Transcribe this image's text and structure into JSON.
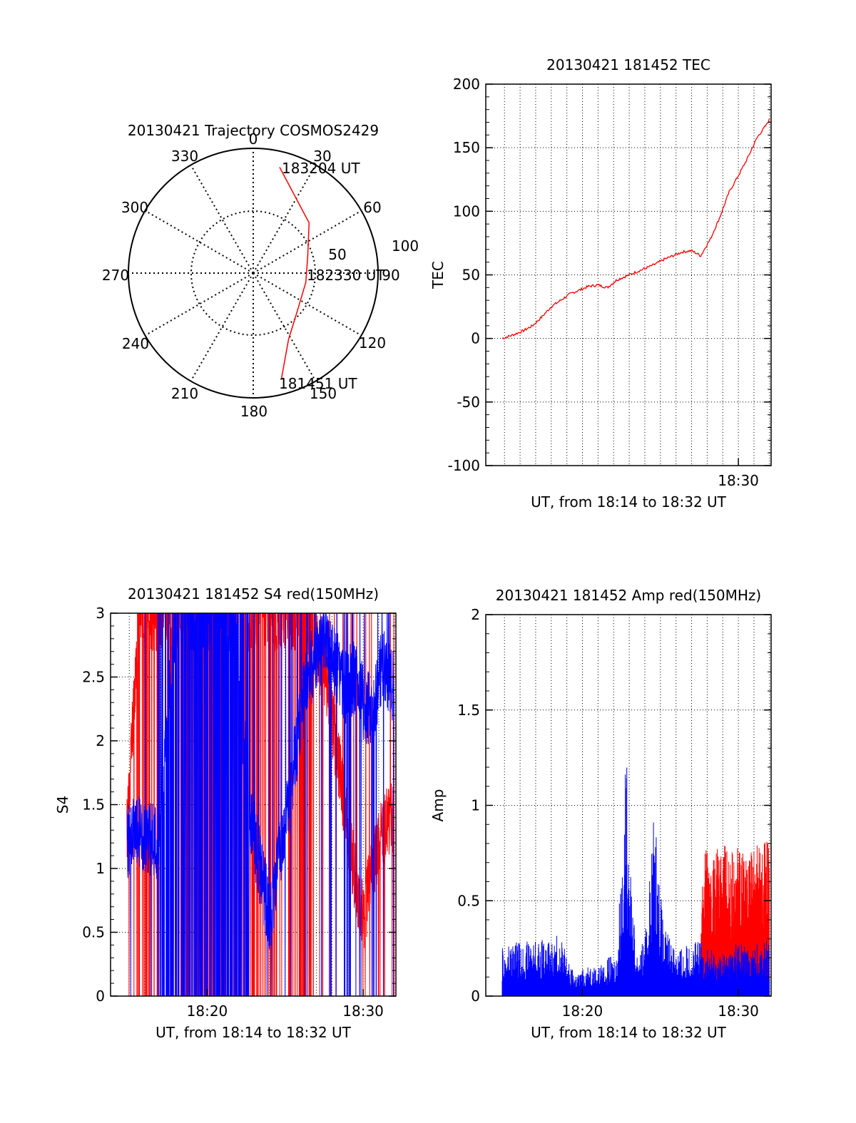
{
  "colors": {
    "red": "#ff0000",
    "blue": "#0000ff",
    "axis": "#000000",
    "grid": "#000000"
  },
  "chart_data": [
    {
      "type": "polar",
      "title": "20130421 Trajectory COSMOS2429",
      "angle_labels": [
        "0",
        "30",
        "60",
        "90",
        "120",
        "150",
        "180",
        "210",
        "240",
        "270",
        "300",
        "330"
      ],
      "radial_labels": [
        "50",
        "100"
      ],
      "radial_max": 100,
      "grid": true,
      "series": [
        {
          "color": "red",
          "points": [
            {
              "t": "181451",
              "az": 165,
              "zen": 90
            },
            {
              "t": "",
              "az": 152,
              "zen": 62
            },
            {
              "t": "",
              "az": 128,
              "zen": 47
            },
            {
              "t": "182330",
              "az": 100,
              "zen": 44
            },
            {
              "t": "",
              "az": 73,
              "zen": 47
            },
            {
              "t": "",
              "az": 48,
              "zen": 62
            },
            {
              "t": "183204",
              "az": 14,
              "zen": 90
            }
          ]
        }
      ],
      "annotations": [
        "183204 UT",
        "182330 UT",
        "181451 UT"
      ]
    },
    {
      "type": "line",
      "title": "20130421 181452 TEC",
      "xlabel": "UT, from 18:14 to 18:32 UT",
      "ylabel": "TEC",
      "xlim": [
        18.23,
        18.535
      ],
      "ylim": [
        -100,
        200
      ],
      "yticks": [
        "-100",
        "-50",
        "0",
        "50",
        "100",
        "150",
        "200"
      ],
      "xticks": [
        {
          "label": "18:30",
          "value": 18.5
        }
      ],
      "grid": true,
      "series": [
        {
          "color": "red",
          "x": [
            18.2475,
            18.26,
            18.27,
            18.28,
            18.29,
            18.3,
            18.31,
            18.32,
            18.33,
            18.34,
            18.35,
            18.36,
            18.37,
            18.38,
            18.39,
            18.4,
            18.41,
            18.42,
            18.43,
            18.44,
            18.45,
            18.46,
            18.465,
            18.47,
            18.48,
            18.49,
            18.5,
            18.51,
            18.52,
            18.53,
            18.533
          ],
          "values": [
            0,
            3,
            6,
            10,
            17,
            25,
            30,
            35,
            38,
            41,
            42,
            40,
            46,
            49,
            52,
            55,
            58,
            62,
            65,
            68,
            69,
            65,
            72,
            78,
            95,
            115,
            128,
            142,
            158,
            168,
            172
          ]
        }
      ]
    },
    {
      "type": "line",
      "title": "20130421 181452 S4 red(150MHz)",
      "xlabel": "UT, from 18:14 to 18:32 UT",
      "ylabel": "S4",
      "xlim": [
        18.23,
        18.535
      ],
      "ylim": [
        0,
        3
      ],
      "yticks": [
        "0",
        "0.5",
        "1",
        "1.5",
        "2",
        "2.5",
        "3"
      ],
      "xticks": [
        {
          "label": "18:20",
          "value": 18.3333
        },
        {
          "label": "18:30",
          "value": 18.5
        }
      ],
      "grid": true,
      "series": [
        {
          "color": "red",
          "x": [
            18.2475,
            18.26,
            18.28,
            18.3,
            18.32,
            18.34,
            18.36,
            18.38,
            18.4,
            18.42,
            18.44,
            18.46,
            18.47,
            18.48,
            18.49,
            18.5,
            18.51,
            18.52,
            18.533
          ],
          "values": [
            1.3,
            3,
            3,
            3,
            3,
            3,
            3,
            3,
            3,
            3,
            3,
            2.5,
            2.0,
            1.5,
            1.0,
            0.6,
            1.0,
            1.3,
            1.4
          ]
        },
        {
          "color": "blue",
          "x": [
            18.2475,
            18.26,
            18.28,
            18.3,
            18.32,
            18.34,
            18.36,
            18.38,
            18.4,
            18.42,
            18.44,
            18.46,
            18.47,
            18.48,
            18.49,
            18.5,
            18.51,
            18.52,
            18.533
          ],
          "values": [
            1.2,
            1.3,
            1.2,
            3,
            3,
            3,
            3,
            1.4,
            0.6,
            1.5,
            2.5,
            2.8,
            2.6,
            2.4,
            2.5,
            2.3,
            2.2,
            2.6,
            2.4
          ]
        }
      ]
    },
    {
      "type": "line",
      "title": "20130421 181452 Amp red(150MHz)",
      "xlabel": "UT, from 18:14 to 18:32 UT",
      "ylabel": "Amp",
      "xlim": [
        18.23,
        18.535
      ],
      "ylim": [
        0,
        2
      ],
      "yticks": [
        "0",
        "0.5",
        "1",
        "1.5",
        "2"
      ],
      "xticks": [
        {
          "label": "18:20",
          "value": 18.3333
        },
        {
          "label": "18:30",
          "value": 18.5
        }
      ],
      "grid": true,
      "series": [
        {
          "color": "blue",
          "x": [
            18.2475,
            18.26,
            18.27,
            18.28,
            18.29,
            18.3,
            18.31,
            18.32,
            18.33,
            18.34,
            18.35,
            18.36,
            18.37,
            18.38,
            18.39,
            18.4,
            18.41,
            18.42,
            18.43,
            18.44,
            18.45,
            18.46,
            18.47,
            18.48,
            18.49,
            18.5,
            18.51,
            18.52,
            18.533
          ],
          "values": [
            0.25,
            0.3,
            0.27,
            0.32,
            0.3,
            0.28,
            0.35,
            0.15,
            0.12,
            0.18,
            0.15,
            0.2,
            0.22,
            1.3,
            0.25,
            0.3,
            1.0,
            0.35,
            0.3,
            0.25,
            0.28,
            0.3,
            0.25,
            0.22,
            0.25,
            0.3,
            0.25,
            0.28,
            0.3
          ]
        },
        {
          "color": "red",
          "x": [
            18.46,
            18.465,
            18.47,
            18.48,
            18.49,
            18.5,
            18.51,
            18.52,
            18.533
          ],
          "values": [
            0.5,
            0.8,
            0.7,
            0.85,
            0.75,
            0.8,
            0.7,
            0.85,
            0.8
          ]
        }
      ]
    }
  ]
}
